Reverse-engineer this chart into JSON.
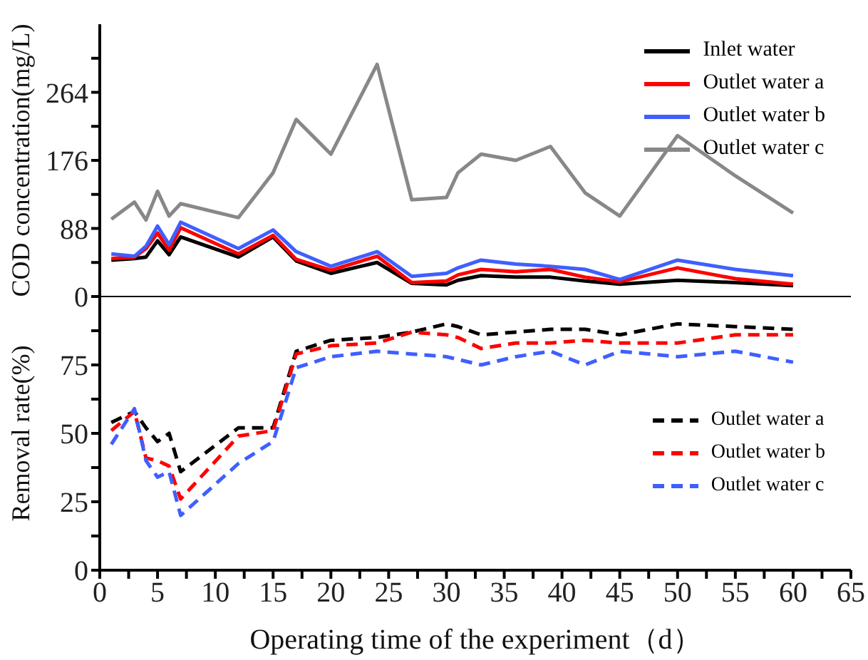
{
  "chart_data": [
    {
      "type": "line",
      "ylabel": "COD concentration(mg/L)",
      "x": [
        1,
        3,
        4,
        5,
        6,
        7,
        12,
        15,
        17,
        20,
        24,
        27,
        30,
        31,
        33,
        36,
        39,
        42,
        45,
        50,
        55,
        60
      ],
      "xlim": [
        0,
        65
      ],
      "ylim": [
        0,
        352
      ],
      "yticks": [
        0,
        {
          "value": 44,
          "label": null
        },
        88,
        {
          "value": 132,
          "label": null
        },
        176,
        {
          "value": 220,
          "label": null
        },
        264,
        {
          "value": 308,
          "label": null
        }
      ],
      "tick_labels": "y",
      "legend": "top right",
      "marker": "none",
      "line_style": "solid",
      "series": [
        {
          "name": "Inlet water",
          "color": "#000000",
          "values": [
            47,
            49,
            51,
            72,
            54,
            77,
            51,
            77,
            46,
            30,
            44,
            17,
            15,
            21,
            27,
            25,
            25,
            20,
            16,
            21,
            18,
            14
          ]
        },
        {
          "name": "Outlet water a",
          "color": "#ff0000",
          "values": [
            49,
            51,
            62,
            82,
            60,
            89,
            55,
            79,
            48,
            34,
            52,
            18,
            20,
            28,
            35,
            32,
            35,
            25,
            19,
            37,
            23,
            16
          ]
        },
        {
          "name": "Outlet water b",
          "color": "#3f5fff",
          "values": [
            55,
            52,
            65,
            91,
            67,
            96,
            62,
            86,
            58,
            39,
            58,
            26,
            30,
            37,
            47,
            42,
            39,
            35,
            22,
            47,
            35,
            27
          ]
        },
        {
          "name": "Outlet water c",
          "color": "#888888",
          "values": [
            100,
            122,
            99,
            136,
            104,
            120,
            102,
            160,
            229,
            184,
            300,
            125,
            128,
            160,
            184,
            176,
            194,
            134,
            104,
            208,
            156,
            108
          ]
        }
      ]
    },
    {
      "type": "line",
      "ylabel": "Removal rate(%)",
      "xlabel": "Operating time of the experiment（d）",
      "x": [
        1,
        3,
        4,
        5,
        6,
        7,
        12,
        15,
        17,
        20,
        24,
        27,
        30,
        31,
        33,
        36,
        39,
        42,
        45,
        50,
        55,
        60
      ],
      "xlim": [
        0,
        65
      ],
      "xticks": [
        0,
        {
          "value": 2.5,
          "label": null
        },
        5,
        {
          "value": 7.5,
          "label": null
        },
        10,
        {
          "value": 12.5,
          "label": null
        },
        15,
        {
          "value": 17.5,
          "label": null
        },
        20,
        {
          "value": 22.5,
          "label": null
        },
        25,
        {
          "value": 27.5,
          "label": null
        },
        30,
        {
          "value": 32.5,
          "label": null
        },
        35,
        {
          "value": 37.5,
          "label": null
        },
        40,
        {
          "value": 42.5,
          "label": null
        },
        45,
        {
          "value": 47.5,
          "label": null
        },
        50,
        {
          "value": 52.5,
          "label": null
        },
        55,
        {
          "value": 57.5,
          "label": null
        },
        60,
        {
          "value": 62.5,
          "label": null
        },
        65
      ],
      "ylim": [
        0,
        100
      ],
      "yticks": [
        0,
        {
          "value": 12.5,
          "label": null
        },
        25,
        {
          "value": 37.5,
          "label": null
        },
        50,
        {
          "value": 62.5,
          "label": null
        },
        75,
        {
          "value": 87.5,
          "label": null
        }
      ],
      "legend": "right",
      "marker": "none",
      "line_style": "dashed",
      "series": [
        {
          "name": "Outlet water a",
          "color": "#000000",
          "values": [
            54,
            58,
            52,
            47,
            50,
            36,
            52,
            52,
            80,
            84,
            85,
            87,
            90,
            89,
            86,
            87,
            88,
            88,
            86,
            90,
            89,
            88
          ]
        },
        {
          "name": "Outlet water b",
          "color": "#ff0000",
          "values": [
            51,
            58,
            41,
            40,
            38,
            26,
            49,
            51,
            79,
            82,
            83,
            87,
            86,
            85,
            81,
            83,
            83,
            84,
            83,
            83,
            86,
            86
          ]
        },
        {
          "name": "Outlet water c",
          "color": "#3f5fff",
          "values": [
            46,
            59,
            40,
            34,
            36,
            20,
            39,
            47,
            74,
            78,
            80,
            79,
            78,
            77,
            75,
            78,
            80,
            75,
            80,
            78,
            80,
            76
          ]
        }
      ]
    }
  ]
}
